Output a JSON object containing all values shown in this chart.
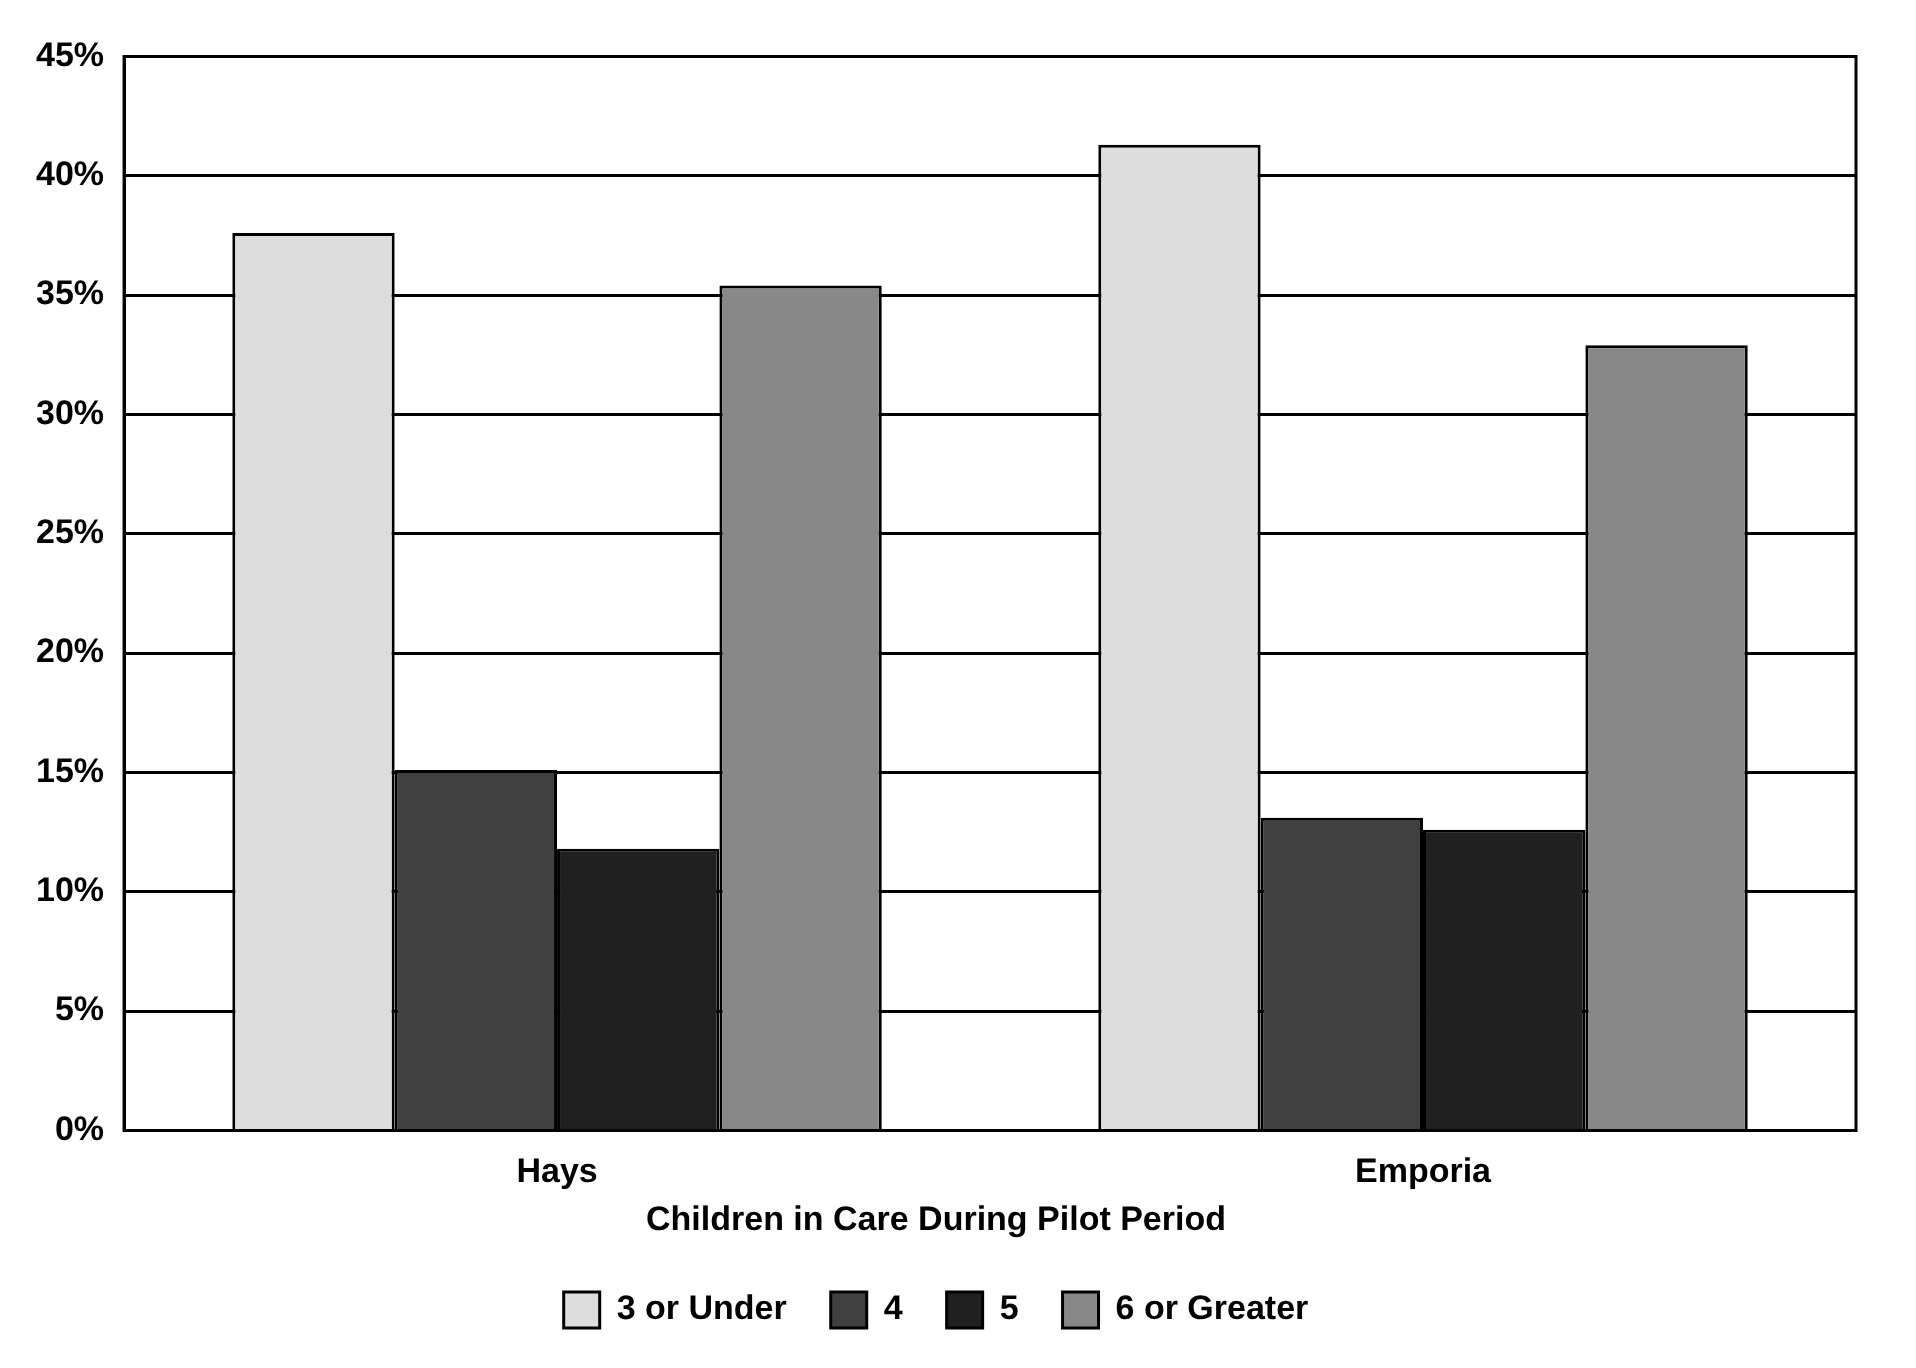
{
  "chart_data": {
    "type": "bar",
    "categories": [
      "Hays",
      "Emporia"
    ],
    "series": [
      {
        "name": "3 or Under",
        "color": "#dddddd",
        "values": [
          37.6,
          41.3
        ]
      },
      {
        "name": "4",
        "color": "#404040",
        "values": [
          15.1,
          13.1
        ]
      },
      {
        "name": "5",
        "color": "#202020",
        "values": [
          11.8,
          12.6
        ]
      },
      {
        "name": "6 or Greater",
        "color": "#888888",
        "values": [
          35.4,
          32.9
        ]
      }
    ],
    "ylim": [
      0,
      45
    ],
    "yticks": [
      {
        "value": 0,
        "label": "0%"
      },
      {
        "value": 5,
        "label": "5%"
      },
      {
        "value": 10,
        "label": "10%"
      },
      {
        "value": 15,
        "label": "15%"
      },
      {
        "value": 20,
        "label": "20%"
      },
      {
        "value": 25,
        "label": "25%"
      },
      {
        "value": 30,
        "label": "30%"
      },
      {
        "value": 35,
        "label": "35%"
      },
      {
        "value": 40,
        "label": "40%"
      },
      {
        "value": 45,
        "label": "45%"
      }
    ],
    "grid": "y",
    "legend": "bottom",
    "legend_title": "Children in Care During Pilot Period"
  }
}
